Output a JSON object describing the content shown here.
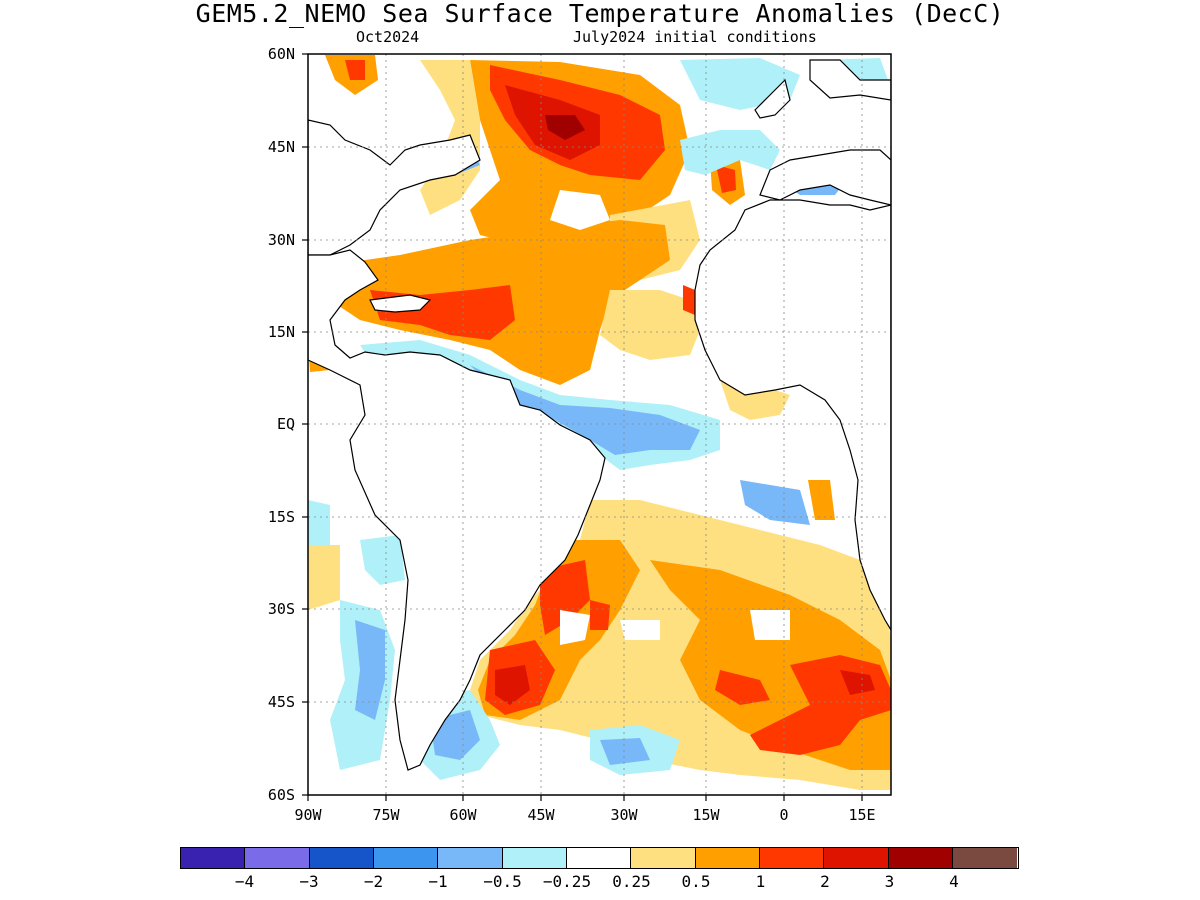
{
  "header": {
    "title": "GEM5.2_NEMO Sea Surface Temperature Anomalies (DecC)",
    "subtitle_left": "Oct2024",
    "subtitle_right": "July2024 initial conditions"
  },
  "axes": {
    "lat_labels": [
      "60N",
      "45N",
      "30N",
      "15N",
      "EQ",
      "15S",
      "30S",
      "45S",
      "60S"
    ],
    "lon_labels": [
      "90W",
      "75W",
      "60W",
      "45W",
      "30W",
      "15W",
      "0",
      "15E"
    ]
  },
  "colorbar": {
    "colors": [
      "#3a22b0",
      "#7a6be8",
      "#1554c9",
      "#3c96f0",
      "#78b8f8",
      "#b0f0f8",
      "#ffffff",
      "#ffe080",
      "#ffa000",
      "#ff3800",
      "#de1400",
      "#a00000",
      "#7a4a40"
    ],
    "labels": [
      "−4",
      "−3",
      "−2",
      "−1",
      "−0.5",
      "−0.25",
      "0.25",
      "0.5",
      "1",
      "2",
      "3",
      "4"
    ]
  }
}
